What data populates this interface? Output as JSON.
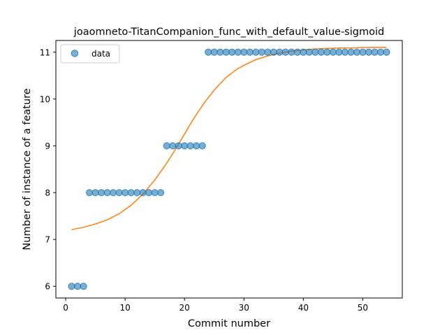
{
  "chart_data": {
    "type": "scatter",
    "title": "joaomneto-TitanCompanion_func_with_default_value-sigmoid",
    "xlabel": "Commit number",
    "ylabel": "Number of instance of a feature",
    "xlim": [
      -1.65,
      56.65
    ],
    "ylim": [
      5.75,
      11.25
    ],
    "xticks": [
      0,
      10,
      20,
      30,
      40,
      50
    ],
    "yticks": [
      6,
      7,
      8,
      9,
      10,
      11
    ],
    "grid": false,
    "legend": {
      "placement": "top-left",
      "entries": [
        "data"
      ]
    },
    "series": [
      {
        "name": "data",
        "kind": "points",
        "color": "#1f77b4",
        "x": [
          1,
          2,
          3,
          4,
          5,
          6,
          7,
          8,
          9,
          10,
          11,
          12,
          13,
          14,
          15,
          16,
          17,
          18,
          19,
          20,
          21,
          22,
          23,
          24,
          25,
          26,
          27,
          28,
          29,
          30,
          31,
          32,
          33,
          34,
          35,
          36,
          37,
          38,
          39,
          40,
          41,
          42,
          43,
          44,
          45,
          46,
          47,
          48,
          49,
          50,
          51,
          52,
          53,
          54
        ],
        "y": [
          6,
          6,
          6,
          8,
          8,
          8,
          8,
          8,
          8,
          8,
          8,
          8,
          8,
          8,
          8,
          8,
          9,
          9,
          9,
          9,
          9,
          9,
          9,
          11,
          11,
          11,
          11,
          11,
          11,
          11,
          11,
          11,
          11,
          11,
          11,
          11,
          11,
          11,
          11,
          11,
          11,
          11,
          11,
          11,
          11,
          11,
          11,
          11,
          11,
          11,
          11,
          11,
          11,
          11
        ]
      },
      {
        "kind": "sigmoid-fit",
        "color": "#ff7f0e",
        "x": [
          1,
          3,
          5,
          7,
          9,
          11,
          13,
          15,
          17,
          18,
          19,
          20,
          21,
          22,
          23,
          24,
          25,
          26,
          27,
          28,
          29,
          30,
          32,
          34,
          36,
          38,
          40,
          42,
          44,
          46,
          48,
          50,
          52,
          54
        ],
        "y": [
          7.21,
          7.26,
          7.33,
          7.42,
          7.55,
          7.73,
          7.97,
          8.27,
          8.63,
          8.83,
          9.04,
          9.25,
          9.47,
          9.67,
          9.86,
          10.03,
          10.19,
          10.33,
          10.46,
          10.56,
          10.65,
          10.72,
          10.84,
          10.92,
          10.98,
          11.02,
          11.05,
          11.07,
          11.08,
          11.09,
          11.09,
          11.1,
          11.1,
          11.1
        ]
      }
    ]
  }
}
